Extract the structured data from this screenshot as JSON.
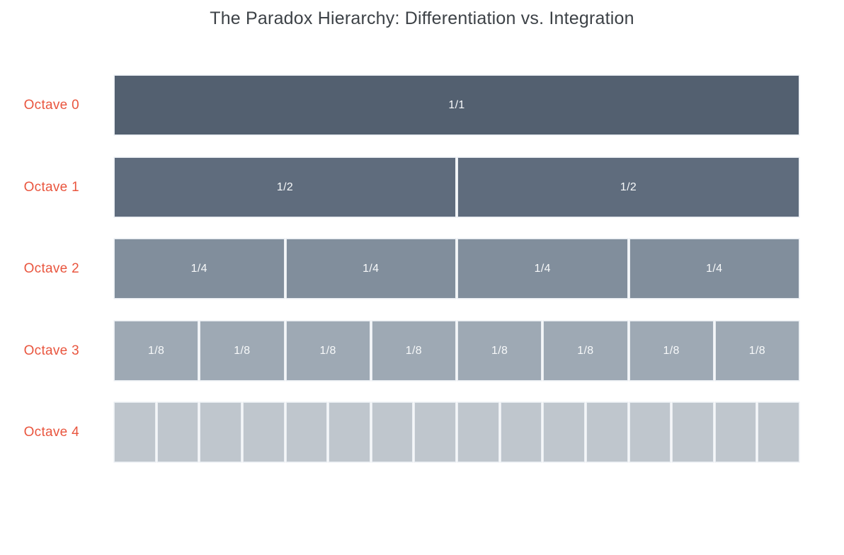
{
  "accent_label_color": "#e9553e",
  "chart_data": {
    "type": "bar",
    "title": "The Paradox Hierarchy: Differentiation vs. Integration",
    "description": "Fraction-partition (icicle-style) chart: each octave row splits the same full width into 2^n equal segments",
    "legend_position": "none",
    "grid": false,
    "rows": [
      {
        "label": "Octave 0",
        "segments": 1,
        "segment_label": "1/1",
        "segment_value": 1.0,
        "color": "#536070"
      },
      {
        "label": "Octave 1",
        "segments": 2,
        "segment_label": "1/2",
        "segment_value": 0.5,
        "color": "#5f6c7d"
      },
      {
        "label": "Octave 2",
        "segments": 4,
        "segment_label": "1/4",
        "segment_value": 0.25,
        "color": "#818e9c"
      },
      {
        "label": "Octave 3",
        "segments": 8,
        "segment_label": "1/8",
        "segment_value": 0.125,
        "color": "#9ea9b4"
      },
      {
        "label": "Octave 4",
        "segments": 16,
        "segment_label": "",
        "segment_value": 0.0625,
        "color": "#bfc6cd"
      }
    ]
  }
}
